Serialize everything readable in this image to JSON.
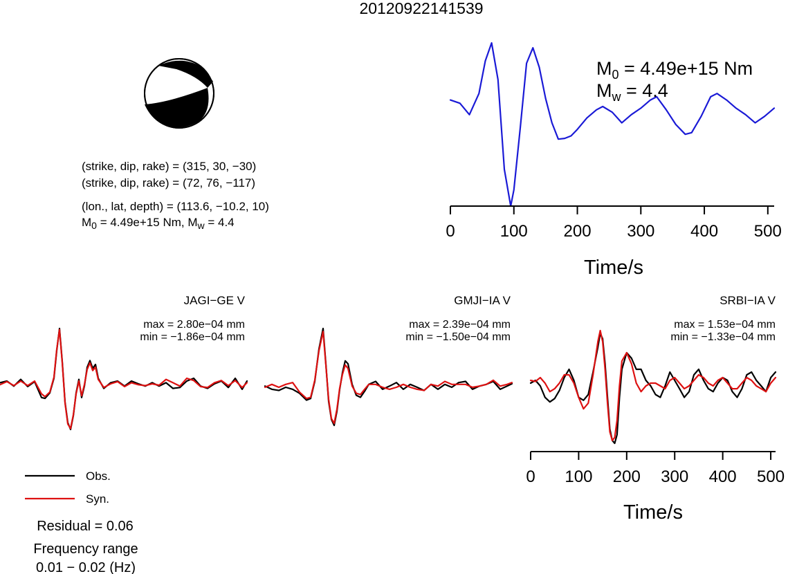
{
  "title": "20120922141539",
  "focal_mechanism": {
    "strike": [
      315,
      72
    ],
    "dip": [
      30,
      76
    ],
    "rake": [
      -30,
      -117
    ]
  },
  "info": {
    "plane1": "(strike, dip, rake) = (315, 30, −30)",
    "plane2": "(strike, dip, rake) = (72, 76, −117)",
    "location": "(lon., lat, depth) = (113.6, −10.2, 10)",
    "moment_main": "M",
    "moment_sub": "0",
    "moment_value": " = 4.49e+15 Nm, M",
    "mw_sub": "w",
    "mw_value": " = 4.4"
  },
  "stf_panel": {
    "m0_main": "M",
    "m0_sub": "0",
    "m0_value": " = 4.49e+15 Nm",
    "mw_main": "M",
    "mw_sub": "w",
    "mw_value": " = 4.4",
    "xlabel": "Time/s"
  },
  "legend": {
    "obs": "Obs.",
    "syn": "Syn.",
    "residual": "Residual = 0.06",
    "freq_label": "Frequency range",
    "freq_value": "0.01 − 0.02 (Hz)"
  },
  "stations": [
    {
      "name": "JAGI−GE V",
      "max": "max = 2.80e−04 mm",
      "min": "min = −1.86e−04 mm"
    },
    {
      "name": "GMJI−IA V",
      "max": "max = 2.39e−04 mm",
      "min": "min = −1.50e−04 mm"
    },
    {
      "name": "SRBI−IA V",
      "max": "max = 1.53e−04 mm",
      "min": "min = −1.33e−04 mm"
    }
  ],
  "waveform_axis": {
    "xlabel": "Time/s"
  },
  "colors": {
    "stf": "#1a1ad6",
    "obs": "#000000",
    "syn": "#dd1111"
  },
  "chart_data": [
    {
      "type": "line",
      "name": "source time function",
      "x": [
        0,
        15,
        30,
        45,
        55,
        65,
        75,
        85,
        95,
        100,
        110,
        120,
        130,
        140,
        150,
        160,
        170,
        180,
        190,
        200,
        215,
        230,
        240,
        255,
        270,
        285,
        300,
        315,
        325,
        340,
        355,
        370,
        380,
        395,
        410,
        420,
        435,
        450,
        465,
        480,
        495,
        510
      ],
      "values": [
        0.3,
        0.26,
        0.12,
        0.38,
        0.78,
        1.0,
        0.55,
        -0.55,
        -1.0,
        -0.8,
        -0.05,
        0.75,
        0.94,
        0.7,
        0.32,
        0.02,
        -0.18,
        -0.17,
        -0.14,
        -0.06,
        0.08,
        0.18,
        0.22,
        0.15,
        0.02,
        0.12,
        0.2,
        0.3,
        0.34,
        0.18,
        0.0,
        -0.12,
        -0.1,
        0.1,
        0.34,
        0.38,
        0.3,
        0.2,
        0.12,
        0.02,
        0.1,
        0.2
      ],
      "xlim": [
        0,
        510
      ],
      "xticks": [
        0,
        100,
        200,
        300,
        400,
        500
      ],
      "xlabel": "Time/s"
    },
    {
      "type": "line",
      "station": "JAGI−GE V",
      "normalized": true,
      "x": [
        0,
        10,
        20,
        30,
        40,
        50,
        60,
        65,
        72,
        78,
        82,
        86,
        90,
        94,
        98,
        102,
        106,
        110,
        114,
        118,
        122,
        126,
        130,
        134,
        138,
        142,
        150,
        160,
        170,
        180,
        190,
        200,
        210,
        220,
        230,
        240,
        250,
        260,
        270,
        280,
        290,
        300,
        310,
        320,
        330,
        340,
        350,
        357
      ],
      "series": [
        {
          "name": "Obs.",
          "values": [
            0.02,
            0.05,
            -0.05,
            0.08,
            -0.06,
            0.04,
            -0.3,
            -0.32,
            -0.2,
            0.1,
            0.6,
            1.0,
            0.4,
            -0.4,
            -0.85,
            -1.0,
            -0.7,
            -0.2,
            0.08,
            -0.3,
            -0.05,
            0.3,
            0.42,
            0.28,
            0.35,
            0.1,
            -0.1,
            0.02,
            0.05,
            -0.05,
            0.05,
            0.0,
            -0.05,
            0.02,
            -0.05,
            0.02,
            -0.1,
            -0.08,
            0.05,
            0.1,
            -0.05,
            -0.1,
            0.0,
            0.05,
            -0.08,
            0.1,
            -0.12,
            0.05
          ]
        },
        {
          "name": "Syn.",
          "values": [
            -0.02,
            0.04,
            -0.04,
            0.05,
            -0.04,
            0.05,
            -0.22,
            -0.28,
            -0.18,
            0.12,
            0.62,
            0.98,
            0.38,
            -0.42,
            -0.88,
            -0.98,
            -0.68,
            -0.22,
            0.05,
            -0.26,
            -0.02,
            0.26,
            0.38,
            0.24,
            0.3,
            0.08,
            -0.08,
            0.0,
            0.04,
            -0.06,
            0.02,
            -0.02,
            -0.04,
            0.0,
            -0.03,
            0.08,
            0.02,
            -0.05,
            0.1,
            0.06,
            -0.06,
            -0.08,
            0.02,
            0.06,
            -0.04,
            0.06,
            -0.08,
            0.02
          ]
        }
      ]
    },
    {
      "type": "line",
      "station": "GMJI−IA V",
      "normalized": true,
      "x": [
        0,
        10,
        20,
        30,
        40,
        50,
        60,
        66,
        72,
        78,
        84,
        88,
        92,
        96,
        100,
        104,
        108,
        112,
        116,
        120,
        126,
        132,
        138,
        144,
        150,
        160,
        170,
        180,
        190,
        200,
        210,
        220,
        230,
        240,
        250,
        260,
        270,
        280,
        290,
        300,
        310,
        320,
        330,
        340,
        350,
        357
      ],
      "series": [
        {
          "name": "Obs.",
          "values": [
            0.02,
            -0.05,
            -0.08,
            0.0,
            -0.05,
            -0.15,
            -0.32,
            -0.28,
            0.1,
            0.65,
            1.0,
            0.4,
            -0.35,
            -0.8,
            -0.95,
            -0.6,
            -0.05,
            0.25,
            0.45,
            0.4,
            0.05,
            -0.2,
            -0.25,
            -0.1,
            0.05,
            0.1,
            -0.05,
            0.02,
            0.08,
            -0.05,
            0.05,
            0.0,
            -0.08,
            0.05,
            -0.05,
            0.05,
            0.0,
            0.08,
            0.1,
            -0.05,
            0.02,
            0.05,
            0.1,
            -0.05,
            0.02,
            0.06
          ]
        },
        {
          "name": "Syn.",
          "values": [
            0.0,
            0.05,
            0.0,
            0.05,
            0.08,
            -0.12,
            -0.28,
            -0.25,
            0.12,
            0.62,
            0.95,
            0.38,
            -0.3,
            -0.78,
            -0.9,
            -0.55,
            -0.02,
            0.22,
            0.38,
            0.32,
            0.02,
            -0.15,
            -0.18,
            -0.05,
            0.05,
            0.05,
            0.0,
            -0.05,
            0.0,
            0.05,
            0.0,
            -0.05,
            -0.08,
            0.05,
            0.02,
            0.1,
            0.05,
            0.05,
            0.05,
            0.0,
            0.02,
            0.05,
            0.12,
            0.02,
            0.05,
            0.08
          ]
        }
      ]
    },
    {
      "type": "line",
      "station": "SRBI−IA V",
      "normalized": true,
      "x": [
        0,
        10,
        20,
        30,
        40,
        50,
        60,
        70,
        80,
        90,
        100,
        110,
        120,
        130,
        140,
        145,
        150,
        155,
        160,
        165,
        170,
        175,
        180,
        185,
        190,
        200,
        210,
        220,
        230,
        240,
        250,
        260,
        270,
        280,
        290,
        300,
        310,
        320,
        330,
        340,
        350,
        360,
        370,
        380,
        390,
        400,
        410,
        420,
        430,
        440,
        450,
        460,
        470,
        480,
        490,
        500,
        510
      ],
      "xlim": [
        0,
        510
      ],
      "xticks": [
        0,
        100,
        200,
        300,
        400,
        500
      ],
      "xlabel": "Time/s",
      "series": [
        {
          "name": "Obs.",
          "values": [
            0.05,
            0.1,
            0.0,
            -0.2,
            -0.28,
            -0.22,
            -0.08,
            0.15,
            0.3,
            0.1,
            -0.2,
            -0.25,
            -0.15,
            0.25,
            0.7,
            0.95,
            0.85,
            0.4,
            -0.2,
            -0.75,
            -0.95,
            -1.0,
            -0.85,
            -0.2,
            0.3,
            0.6,
            0.5,
            0.3,
            0.3,
            0.1,
            0.0,
            -0.15,
            -0.2,
            0.0,
            0.25,
            0.1,
            -0.05,
            -0.2,
            -0.1,
            0.2,
            0.3,
            0.1,
            -0.05,
            -0.1,
            0.05,
            0.15,
            0.1,
            -0.1,
            -0.2,
            -0.05,
            0.2,
            0.25,
            0.1,
            0.0,
            -0.1,
            0.15,
            0.25
          ]
        },
        {
          "name": "Syn.",
          "values": [
            0.1,
            0.08,
            0.15,
            0.05,
            -0.1,
            -0.05,
            0.05,
            0.2,
            0.2,
            0.05,
            -0.2,
            -0.4,
            -0.3,
            0.2,
            0.8,
            1.0,
            0.8,
            0.3,
            -0.3,
            -0.8,
            -0.95,
            -0.9,
            -0.6,
            0.0,
            0.45,
            0.6,
            0.4,
            0.05,
            -0.1,
            0.0,
            0.05,
            0.05,
            0.0,
            -0.05,
            0.1,
            0.15,
            0.05,
            -0.05,
            0.0,
            0.1,
            0.2,
            0.15,
            0.05,
            0.0,
            0.1,
            0.15,
            0.05,
            -0.05,
            -0.05,
            0.05,
            0.15,
            0.1,
            0.0,
            -0.05,
            -0.1,
            0.05,
            0.15
          ]
        }
      ]
    }
  ]
}
